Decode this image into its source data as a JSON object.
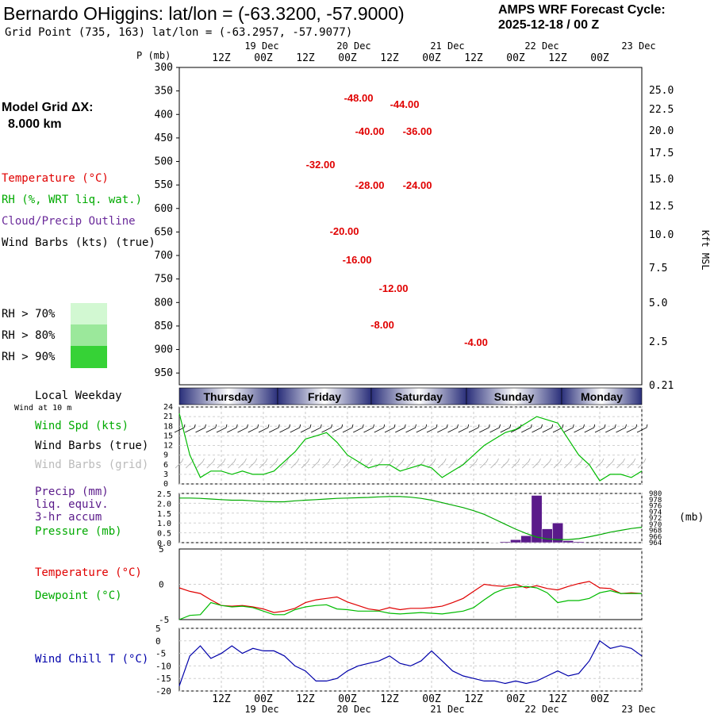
{
  "header": {
    "title": "Bernardo OHiggins:  lat/lon = (-63.3200, -57.9000)",
    "subtitle": "Grid Point (735, 163) lat/lon = (-63.2957, -57.9077)",
    "cycle_line1": "AMPS WRF Forecast Cycle:",
    "cycle_line2": "2025-12-18 / 00  Z"
  },
  "legend": {
    "model_grid": "Model Grid ΔX:",
    "grid_km": "8.000 km",
    "temperature": "Temperature (°C)",
    "rh": "RH (%, WRT liq. wat.)",
    "cloud": "Cloud/Precip Outline",
    "wind": "Wind Barbs (kts) (true)",
    "rh70": "RH > 70%",
    "rh80": "RH > 80%",
    "rh90": "RH > 90%",
    "rh_colors": [
      "#d2f8d2",
      "#9be89b",
      "#36d236"
    ]
  },
  "colors": {
    "temperature": "#e00000",
    "dewpoint": "#00bb00",
    "wind_speed": "#00bb00",
    "cloud": "#6a2a9a",
    "precip": "#5a1a8a",
    "pressure": "#00aa00",
    "wind_chill": "#0000aa"
  },
  "time_axis": {
    "top_ticks": [
      "12Z",
      "00Z",
      "12Z",
      "00Z",
      "12Z",
      "00Z",
      "12Z",
      "00Z",
      "12Z",
      "00Z"
    ],
    "dates": [
      "19 Dec",
      "20 Dec",
      "21 Dec",
      "22 Dec",
      "23 Dec"
    ],
    "weekdays": [
      "Thursday",
      "Friday",
      "Saturday",
      "Sunday",
      "Monday"
    ],
    "weekday_label": "Local Weekday",
    "wind_at": "Wind at 10 m"
  },
  "chart_data": [
    {
      "type": "heatmap",
      "name": "vertical cross-section",
      "ylabel": "P (mb)",
      "right_label": "Kft MSL",
      "pressure_ticks": [
        300,
        350,
        400,
        450,
        500,
        550,
        600,
        650,
        700,
        750,
        800,
        850,
        900,
        950
      ],
      "height_ticks": [
        "25.0",
        "22.5",
        "20.0",
        "17.5",
        "15.0",
        "12.5",
        "10.0",
        "7.5",
        "5.0",
        "2.5",
        "0.21"
      ],
      "temperature_labels": [
        "-48.00",
        "-44.00",
        "-40.00",
        "-36.00",
        "-32.00",
        "-28.00",
        "-24.00",
        "-20.00",
        "-16.00",
        "-12.00",
        "-8.00",
        "-4.00"
      ]
    },
    {
      "type": "line",
      "name": "wind",
      "labels": [
        "Wind Spd (kts)",
        "Wind Barbs (true)",
        "Wind Barbs (grid)"
      ],
      "y_ticks": [
        0,
        3,
        6,
        9,
        12,
        15,
        18,
        21,
        24
      ],
      "ylim": [
        0,
        24
      ],
      "wind_speed": [
        22,
        9,
        2,
        4,
        4,
        3,
        4,
        3,
        3,
        4,
        7,
        10,
        14,
        15,
        16,
        13,
        9,
        7,
        5,
        6,
        6,
        4,
        5,
        6,
        5,
        2,
        4,
        6,
        9,
        12,
        14,
        16,
        17,
        19,
        21,
        20,
        19,
        14,
        9,
        6,
        1,
        3,
        3,
        2,
        4
      ]
    },
    {
      "type": "bar",
      "name": "precip and pressure",
      "labels": [
        "Precip (mm)",
        "liq. equiv.",
        "3-hr accum",
        "Pressure (mb)"
      ],
      "right_unit": "(mb)",
      "y_ticks": [
        "0.0",
        "0.5",
        "1.0",
        "1.5",
        "2.0",
        "2.5"
      ],
      "ylim": [
        0,
        2.5
      ],
      "pressure_ticks": [
        "980",
        "978",
        "976",
        "974",
        "972",
        "970",
        "968",
        "966",
        "964"
      ],
      "pressure_lim": [
        964,
        980
      ],
      "precip": [
        0,
        0,
        0,
        0,
        0,
        0,
        0,
        0,
        0,
        0,
        0,
        0,
        0,
        0,
        0,
        0,
        0,
        0,
        0,
        0,
        0,
        0,
        0,
        0,
        0,
        0,
        0,
        0,
        0,
        0,
        0.02,
        0.05,
        0.15,
        0.35,
        2.4,
        0.7,
        1.0,
        0.1,
        0.05,
        0,
        0,
        0,
        0,
        0,
        0
      ],
      "pressure": [
        978.5,
        978.5,
        978.4,
        978.2,
        978.0,
        977.8,
        977.8,
        977.6,
        977.4,
        977.3,
        977.3,
        977.6,
        977.8,
        978.0,
        978.2,
        978.4,
        978.5,
        978.6,
        978.7,
        978.9,
        979.0,
        979.0,
        978.8,
        978.4,
        977.8,
        977.0,
        976.2,
        975.4,
        974.4,
        973.2,
        971.6,
        970.0,
        968.4,
        967.0,
        965.8,
        965.2,
        965.0,
        965.0,
        965.3,
        965.9,
        966.6,
        967.4,
        968.0,
        968.6,
        969.0
      ]
    },
    {
      "type": "line",
      "name": "temperature and dewpoint",
      "labels": [
        "Temperature (°C)",
        "Dewpoint (°C)"
      ],
      "y_ticks": [
        5,
        0,
        -5
      ],
      "ylim": [
        -5,
        5
      ],
      "temperature": [
        -0.5,
        -1.0,
        -1.3,
        -2.2,
        -3.0,
        -3.1,
        -3.0,
        -3.2,
        -3.5,
        -4.0,
        -3.8,
        -3.4,
        -2.6,
        -2.2,
        -2.0,
        -1.8,
        -2.5,
        -3.0,
        -3.5,
        -3.7,
        -3.3,
        -3.6,
        -3.4,
        -3.4,
        -3.3,
        -3.1,
        -2.6,
        -2.0,
        -1.0,
        0.0,
        -0.2,
        -0.3,
        0.0,
        -0.5,
        -0.2,
        -0.6,
        -0.8,
        -0.3,
        0.1,
        0.4,
        -0.5,
        -0.6,
        -1.3,
        -1.2,
        -1.3
      ],
      "dewpoint": [
        -5.0,
        -4.4,
        -4.3,
        -2.6,
        -3.0,
        -3.2,
        -3.1,
        -3.3,
        -3.8,
        -4.3,
        -4.3,
        -3.6,
        -3.2,
        -3.0,
        -2.9,
        -3.5,
        -3.6,
        -3.8,
        -3.8,
        -3.8,
        -4.1,
        -4.2,
        -4.1,
        -4.0,
        -4.1,
        -4.2,
        -4.0,
        -3.8,
        -3.3,
        -2.2,
        -1.2,
        -0.6,
        -0.4,
        -0.3,
        -0.5,
        -1.2,
        -2.6,
        -2.3,
        -2.3,
        -2.0,
        -1.2,
        -0.9,
        -1.3,
        -1.3,
        -1.3
      ]
    },
    {
      "type": "line",
      "name": "wind chill",
      "labels": [
        "Wind Chill T (°C)"
      ],
      "y_ticks": [
        5,
        0,
        -5,
        -10,
        -15,
        -20
      ],
      "ylim": [
        -20,
        5
      ],
      "wind_chill": [
        -18,
        -6,
        -2,
        -7,
        -5,
        -2,
        -5,
        -3,
        -4,
        -4,
        -6,
        -10,
        -12,
        -16,
        -16,
        -15,
        -12,
        -10,
        -9,
        -8,
        -6,
        -9,
        -10,
        -8,
        -4,
        -8,
        -12,
        -14,
        -15,
        -16,
        -16,
        -17,
        -16,
        -17,
        -16,
        -14,
        -12,
        -14,
        -13,
        -8,
        0,
        -3,
        -2,
        -3,
        -6
      ]
    }
  ]
}
